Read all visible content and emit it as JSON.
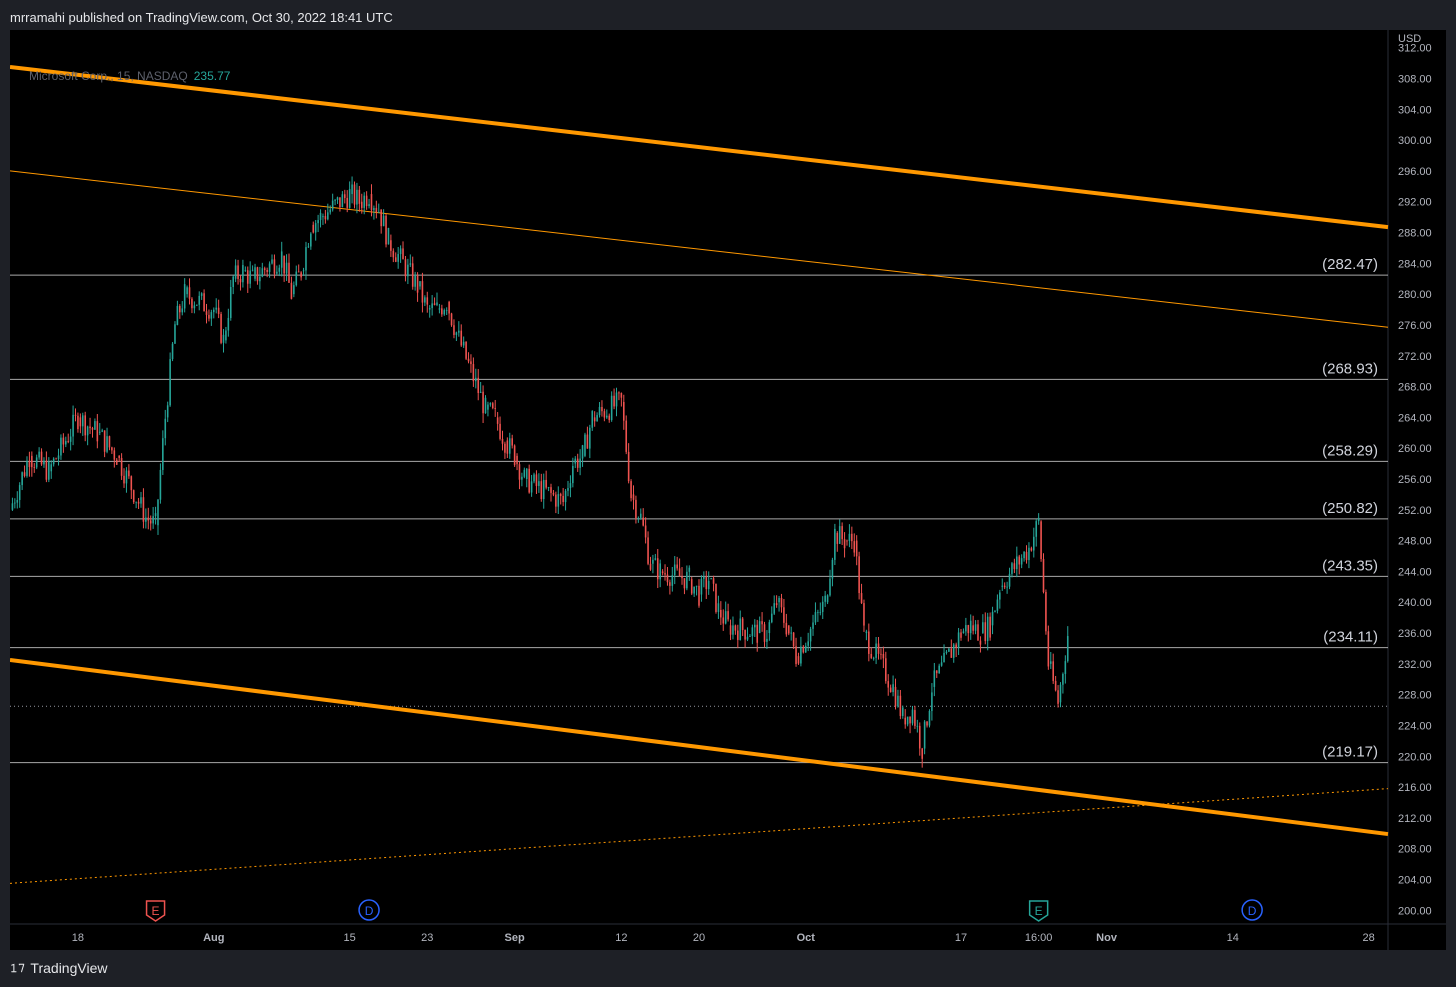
{
  "header": {
    "published": "mrramahi published on TradingView.com, Oct 30, 2022 18:41 UTC"
  },
  "legend": {
    "symbol": "Microsoft Corp., 15, NASDAQ",
    "last_price": "235.77"
  },
  "axis": {
    "currency": "USD"
  },
  "footer": {
    "brand": "TradingView"
  },
  "colors": {
    "up": "#26a69a",
    "down": "#ef5350",
    "channel": "#ff9800",
    "level": "#c8c8c8",
    "background": "#000000"
  },
  "chart_data": {
    "type": "candlestick",
    "title": "Microsoft Corp., 15, NASDAQ",
    "ylabel": "USD",
    "ylim": [
      199.0,
      313.0
    ],
    "y_ticks": [
      200,
      204,
      208,
      212,
      216,
      220,
      224,
      228,
      232,
      236,
      240,
      244,
      248,
      252,
      256,
      260,
      264,
      268,
      272,
      276,
      280,
      284,
      288,
      292,
      296,
      300,
      304,
      308,
      312
    ],
    "x_ticks": [
      "18",
      "Aug",
      "15",
      "23",
      "Sep",
      "12",
      "20",
      "Oct",
      "17",
      "16:00",
      "Nov",
      "14",
      "28"
    ],
    "last_price": 235.77,
    "levels": [
      {
        "label": "(282.47)",
        "value": 282.47
      },
      {
        "label": "(268.93)",
        "value": 268.93
      },
      {
        "label": "(258.29)",
        "value": 258.29
      },
      {
        "label": "(250.82)",
        "value": 250.82
      },
      {
        "label": "(243.35)",
        "value": 243.35
      },
      {
        "label": "(234.11)",
        "value": 234.11
      },
      {
        "label": "(219.17)",
        "value": 219.17
      }
    ],
    "dotted_level": 226.5,
    "channel_lines": [
      {
        "name": "upper-channel",
        "style": "thick",
        "from": {
          "x": "Jul 11",
          "y": 309.5
        },
        "to": {
          "x": "Nov 30",
          "y": 288.7
        }
      },
      {
        "name": "mid-channel",
        "style": "thin",
        "from": {
          "x": "Jul 11",
          "y": 296.0
        },
        "to": {
          "x": "Nov 30",
          "y": 275.7
        }
      },
      {
        "name": "lower-channel",
        "style": "thick",
        "from": {
          "x": "Jul 11",
          "y": 232.5
        },
        "to": {
          "x": "Nov 30",
          "y": 209.9
        }
      },
      {
        "name": "rising-dotted",
        "style": "dotted",
        "from": {
          "x": "Jul 11",
          "y": 203.5
        },
        "to": {
          "x": "Nov 30",
          "y": 215.8
        }
      }
    ],
    "price_path": [
      [
        "Jul 11",
        252
      ],
      [
        "Jul 13",
        259
      ],
      [
        "Jul 15",
        257
      ],
      [
        "Jul 18",
        264
      ],
      [
        "Jul 20",
        262
      ],
      [
        "Jul 22",
        259
      ],
      [
        "Jul 25",
        251
      ],
      [
        "Jul 26",
        250
      ],
      [
        "Jul 27",
        264
      ],
      [
        "Jul 28",
        276
      ],
      [
        "Jul 29",
        280
      ],
      [
        "Aug 1",
        278
      ],
      [
        "Aug 2",
        274
      ],
      [
        "Aug 3",
        282
      ],
      [
        "Aug 4",
        283
      ],
      [
        "Aug 5",
        282
      ],
      [
        "Aug 8",
        285
      ],
      [
        "Aug 9",
        280
      ],
      [
        "Aug 10",
        283
      ],
      [
        "Aug 11",
        289
      ],
      [
        "Aug 12",
        290
      ],
      [
        "Aug 15",
        293
      ],
      [
        "Aug 16",
        292
      ],
      [
        "Aug 17",
        293
      ],
      [
        "Aug 18",
        291
      ],
      [
        "Aug 19",
        287
      ],
      [
        "Aug 22",
        281
      ],
      [
        "Aug 23",
        278
      ],
      [
        "Aug 24",
        278
      ],
      [
        "Aug 25",
        279
      ],
      [
        "Aug 26",
        275
      ],
      [
        "Aug 29",
        265
      ],
      [
        "Aug 30",
        264
      ],
      [
        "Aug 31",
        261
      ],
      [
        "Sep 1",
        259
      ],
      [
        "Sep 2",
        256
      ],
      [
        "Sep 6",
        253
      ],
      [
        "Sep 7",
        258
      ],
      [
        "Sep 8",
        259
      ],
      [
        "Sep 9",
        264
      ],
      [
        "Sep 12",
        266
      ],
      [
        "Sep 13",
        254
      ],
      [
        "Sep 14",
        251
      ],
      [
        "Sep 15",
        245
      ],
      [
        "Sep 16",
        244
      ],
      [
        "Sep 19",
        243
      ],
      [
        "Sep 20",
        241
      ],
      [
        "Sep 21",
        243
      ],
      [
        "Sep 22",
        239
      ],
      [
        "Sep 23",
        237
      ],
      [
        "Sep 26",
        236
      ],
      [
        "Sep 27",
        236
      ],
      [
        "Sep 28",
        240
      ],
      [
        "Sep 29",
        237
      ],
      [
        "Sep 30",
        233
      ],
      [
        "Oct 3",
        240
      ],
      [
        "Oct 4",
        249
      ],
      [
        "Oct 5",
        248
      ],
      [
        "Oct 6",
        248
      ],
      [
        "Oct 7",
        236
      ],
      [
        "Oct 10",
        229
      ],
      [
        "Oct 11",
        225
      ],
      [
        "Oct 12",
        226
      ],
      [
        "Oct 13",
        221
      ],
      [
        "Oct 14",
        229
      ],
      [
        "Oct 17",
        236
      ],
      [
        "Oct 18",
        237
      ],
      [
        "Oct 19",
        236
      ],
      [
        "Oct 20",
        237
      ],
      [
        "Oct 21",
        242
      ],
      [
        "Oct 24",
        247
      ],
      [
        "Oct 25",
        250.5
      ],
      [
        "Oct 26",
        232
      ],
      [
        "Oct 27",
        227
      ],
      [
        "Oct 28",
        235.77
      ]
    ],
    "events": [
      {
        "label": "E",
        "kind": "earnings",
        "date": "Jul 26",
        "color": "#ef5350"
      },
      {
        "label": "D",
        "kind": "dividend",
        "date": "Aug 17",
        "color": "#2962ff"
      },
      {
        "label": "E",
        "kind": "earnings",
        "date": "Oct 25",
        "color": "#26a69a"
      },
      {
        "label": "D",
        "kind": "dividend",
        "date": "Nov 16",
        "color": "#2962ff"
      }
    ]
  }
}
